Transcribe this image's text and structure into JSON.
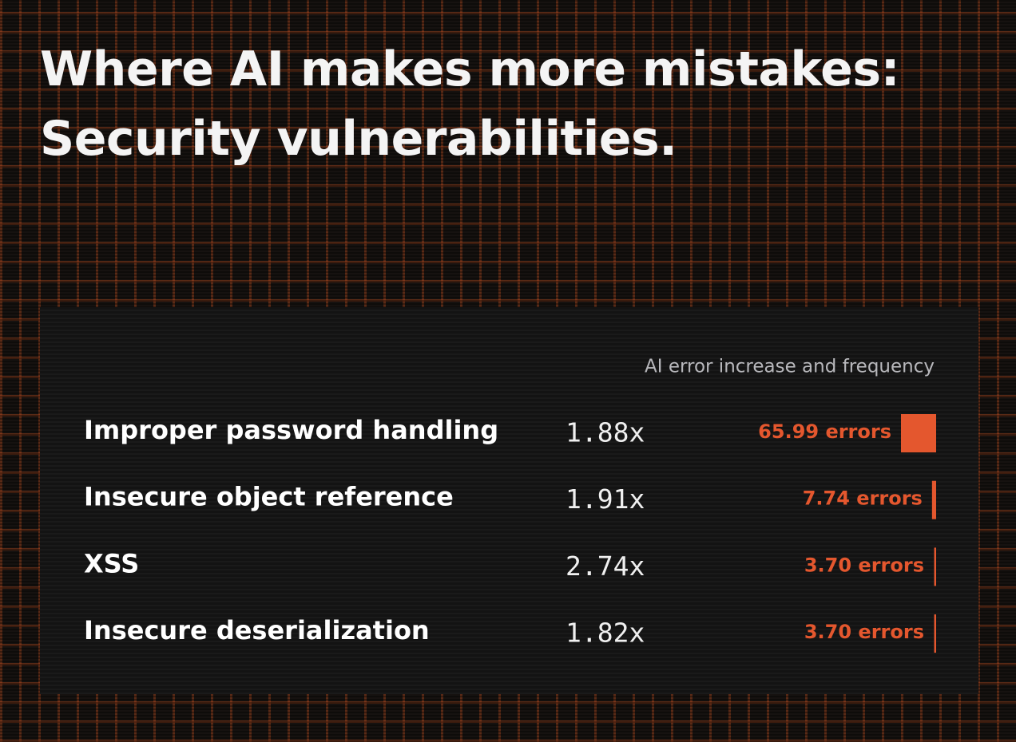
{
  "chart_data": {
    "type": "bar",
    "title": "Where AI makes more mistakes: Security vulnerabilities.",
    "subtitle": "AI error increase and frequency",
    "categories": [
      "Improper password handling",
      "Insecure object reference",
      "XSS",
      "Insecure deserialization"
    ],
    "series": [
      {
        "values": [
          1.88,
          1.91,
          2.74,
          1.82
        ],
        "value_labels": [
          "1.88x",
          "1.91x",
          "2.74x",
          "1.82x"
        ]
      },
      {
        "color": "#e4572e",
        "values": [
          65.99,
          7.74,
          3.7,
          3.7
        ],
        "value_labels": [
          "65.99 errors",
          "7.74 errors",
          "3.70 errors",
          "3.70 errors"
        ]
      }
    ]
  }
}
